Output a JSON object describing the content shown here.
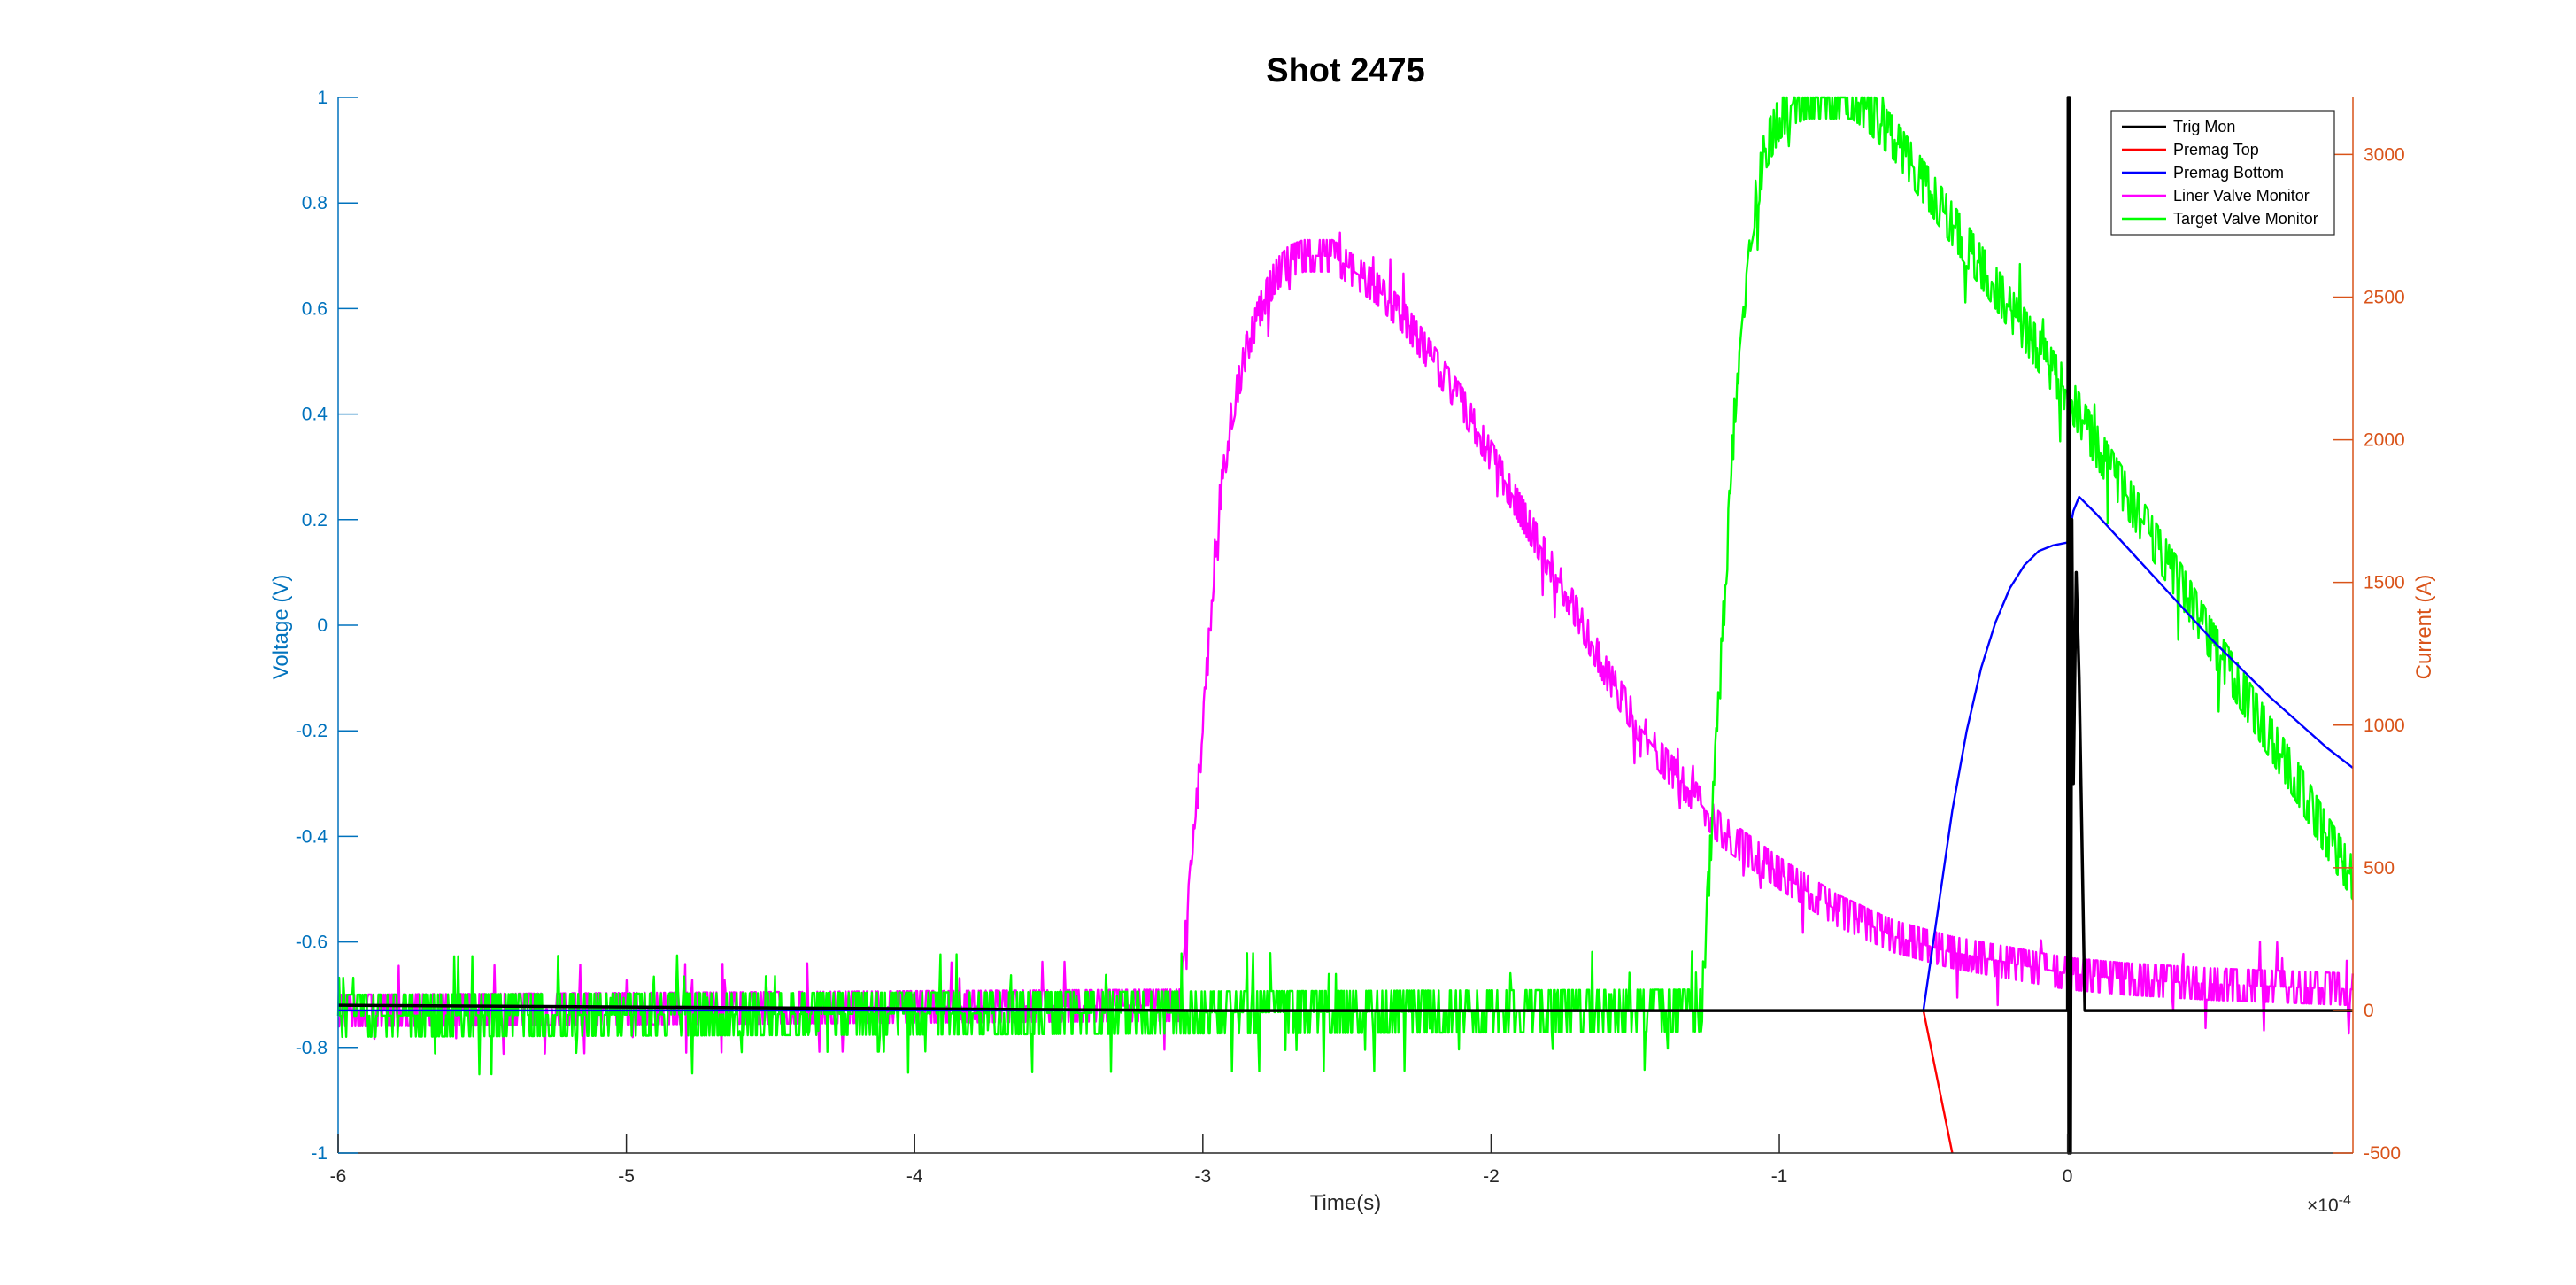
{
  "chart_data": {
    "type": "line",
    "title": "Shot 2475",
    "xlabel": "Time(s)",
    "x_exponent_label": "×10",
    "x_exponent_power": "-4",
    "x_scale": 0.0001,
    "ylabel_left": "Voltage (V)",
    "ylabel_right": "Current (A)",
    "xlim": [
      -6,
      0.99
    ],
    "ylim_left": [
      -1,
      1
    ],
    "ylim_right": [
      -500,
      3200
    ],
    "xticks": [
      -6,
      -5,
      -4,
      -3,
      -2,
      -1,
      0
    ],
    "xtick_labels": [
      "-6",
      "-5",
      "-4",
      "-3",
      "-2",
      "-1",
      "0"
    ],
    "yticks_left": [
      -1,
      -0.8,
      -0.6,
      -0.4,
      -0.2,
      0,
      0.2,
      0.4,
      0.6,
      0.8,
      1
    ],
    "ytick_labels_left": [
      "-1",
      "-0.8",
      "-0.6",
      "-0.4",
      "-0.2",
      "0",
      "0.2",
      "0.4",
      "0.6",
      "0.8",
      "1"
    ],
    "yticks_right": [
      -500,
      0,
      500,
      1000,
      1500,
      2000,
      2500,
      3000
    ],
    "ytick_labels_right": [
      "-500",
      "0",
      "500",
      "1000",
      "1500",
      "2000",
      "2500",
      "3000"
    ],
    "grid": false,
    "legend_position": "top-right",
    "colors": {
      "left_axis": "#0072BD",
      "right_axis": "#D95319",
      "axis_x": "#262626"
    },
    "series": [
      {
        "name": "Trig Mon",
        "color": "#000000",
        "axis": "left",
        "noise": 0,
        "x": [
          -6,
          -3,
          -0.05,
          -0.02,
          -0.01,
          0,
          0.002,
          0.004,
          0.006,
          0.01,
          0.015,
          0.02,
          0.03,
          0.04,
          0.06,
          0.99
        ],
        "y": [
          -0.72,
          -0.73,
          -0.73,
          -0.73,
          -0.73,
          -0.73,
          1.0,
          -1.0,
          1.0,
          -1.0,
          0.2,
          -0.3,
          0.1,
          -0.1,
          -0.73,
          -0.73
        ]
      },
      {
        "name": "Premag Top",
        "color": "#FF0000",
        "axis": "right",
        "noise": 0,
        "x": [
          -0.5,
          -0.45,
          -0.4
        ],
        "y": [
          0,
          -250,
          -500
        ]
      },
      {
        "name": "Premag Bottom",
        "color": "#0000FF",
        "axis": "right",
        "noise": 0,
        "x": [
          -6,
          -1.3,
          -0.5,
          -0.45,
          -0.4,
          -0.35,
          -0.3,
          -0.25,
          -0.2,
          -0.15,
          -0.1,
          -0.05,
          0,
          0.02,
          0.04,
          0.1,
          0.3,
          0.5,
          0.7,
          0.9,
          0.99
        ],
        "y": [
          0,
          0,
          0,
          350,
          700,
          980,
          1200,
          1360,
          1480,
          1560,
          1610,
          1630,
          1640,
          1750,
          1800,
          1740,
          1520,
          1300,
          1100,
          920,
          850
        ]
      },
      {
        "name": "Liner Valve Monitor",
        "color": "#FF00FF",
        "axis": "left",
        "noise": 0.03,
        "x": [
          -6,
          -3.08,
          -3.0,
          -2.95,
          -2.9,
          -2.85,
          -2.8,
          -2.75,
          -2.7,
          -2.65,
          -2.6,
          -2.55,
          -2.5,
          -2.4,
          -2.3,
          -2.2,
          -2.1,
          -2.0,
          -1.9,
          -1.8,
          -1.7,
          -1.6,
          -1.5,
          -1.4,
          -1.3,
          -1.2,
          -1.0,
          -0.8,
          -0.6,
          -0.4,
          -0.2,
          0,
          0.2,
          0.5,
          0.99
        ],
        "y": [
          -0.73,
          -0.72,
          -0.2,
          0.2,
          0.4,
          0.52,
          0.6,
          0.66,
          0.69,
          0.7,
          0.7,
          0.7,
          0.68,
          0.64,
          0.58,
          0.5,
          0.42,
          0.32,
          0.22,
          0.12,
          0.02,
          -0.09,
          -0.18,
          -0.26,
          -0.32,
          -0.39,
          -0.47,
          -0.54,
          -0.59,
          -0.62,
          -0.64,
          -0.66,
          -0.67,
          -0.68,
          -0.69
        ]
      },
      {
        "name": "Target Valve Monitor",
        "color": "#00FF00",
        "axis": "left",
        "noise": 0.04,
        "x": [
          -6,
          -1.27,
          -1.2,
          -1.15,
          -1.1,
          -1.05,
          -1.0,
          -0.95,
          -0.9,
          -0.85,
          -0.8,
          -0.75,
          -0.7,
          -0.6,
          -0.5,
          -0.4,
          -0.3,
          -0.2,
          -0.1,
          0,
          0.1,
          0.2,
          0.3,
          0.4,
          0.5,
          0.6,
          0.7,
          0.8,
          0.9,
          0.99
        ],
        "y": [
          -0.74,
          -0.73,
          -0.05,
          0.45,
          0.75,
          0.9,
          0.96,
          0.99,
          1.0,
          1.0,
          1.0,
          1.0,
          0.98,
          0.92,
          0.84,
          0.76,
          0.68,
          0.6,
          0.52,
          0.44,
          0.34,
          0.25,
          0.16,
          0.07,
          -0.03,
          -0.12,
          -0.21,
          -0.3,
          -0.4,
          -0.48
        ]
      }
    ]
  }
}
